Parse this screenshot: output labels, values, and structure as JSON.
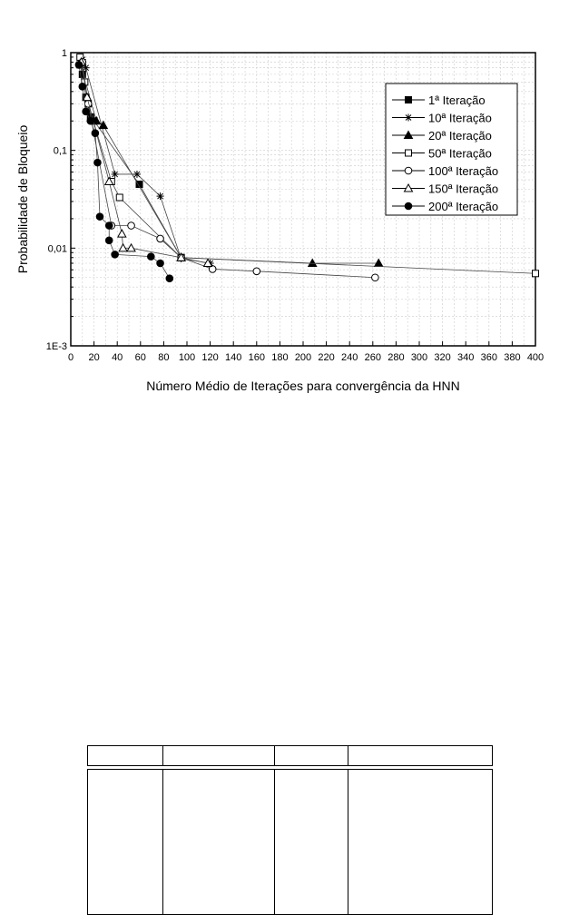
{
  "chart_data": {
    "type": "line",
    "title": "",
    "xlabel": "Número Médio de Iterações para convergência da HNN",
    "ylabel": "Probabilidade de Bloqueio",
    "xlim": [
      0,
      400
    ],
    "ylim": [
      0.001,
      1
    ],
    "yscale": "log",
    "grid": true,
    "legend_position": "top-right",
    "x_ticks": [
      0,
      20,
      40,
      60,
      80,
      100,
      120,
      140,
      160,
      180,
      200,
      220,
      240,
      260,
      280,
      300,
      320,
      340,
      360,
      380,
      400
    ],
    "y_ticks": [
      {
        "value": 1,
        "label": "1"
      },
      {
        "value": 0.1,
        "label": "0,1"
      },
      {
        "value": 0.01,
        "label": "0,01"
      },
      {
        "value": 0.001,
        "label": "1E-3"
      }
    ],
    "series": [
      {
        "name": "1ª Iteração",
        "marker": "square-filled",
        "points": [
          [
            8,
            0.75
          ],
          [
            10,
            0.6
          ],
          [
            13,
            0.35
          ],
          [
            17,
            0.22
          ],
          [
            20,
            0.2
          ],
          [
            59,
            0.045
          ],
          [
            95,
            0.008
          ]
        ]
      },
      {
        "name": "10ª Iteração",
        "marker": "star",
        "points": [
          [
            10,
            0.85
          ],
          [
            13,
            0.7
          ],
          [
            38,
            0.057
          ],
          [
            57,
            0.057
          ],
          [
            77,
            0.034
          ],
          [
            95,
            0.0078
          ],
          [
            120,
            0.007
          ]
        ]
      },
      {
        "name": "20ª Iteração",
        "marker": "triangle-filled",
        "points": [
          [
            8,
            0.8
          ],
          [
            22,
            0.2
          ],
          [
            28,
            0.18
          ],
          [
            95,
            0.008
          ],
          [
            208,
            0.007
          ],
          [
            265,
            0.007
          ]
        ]
      },
      {
        "name": "50ª Iteração",
        "marker": "square-open",
        "points": [
          [
            8,
            0.9
          ],
          [
            12,
            0.5
          ],
          [
            15,
            0.3
          ],
          [
            35,
            0.048
          ],
          [
            42,
            0.033
          ],
          [
            95,
            0.008
          ],
          [
            400,
            0.0055
          ]
        ]
      },
      {
        "name": "100ª Iteração",
        "marker": "circle-open",
        "points": [
          [
            10,
            0.8
          ],
          [
            15,
            0.3
          ],
          [
            35,
            0.017
          ],
          [
            52,
            0.017
          ],
          [
            77,
            0.0125
          ],
          [
            95,
            0.008
          ],
          [
            122,
            0.0061
          ],
          [
            160,
            0.0058
          ],
          [
            262,
            0.005
          ]
        ]
      },
      {
        "name": "150ª Iteração",
        "marker": "triangle-open",
        "points": [
          [
            9,
            0.8
          ],
          [
            14,
            0.35
          ],
          [
            33,
            0.048
          ],
          [
            44,
            0.014
          ],
          [
            45,
            0.01
          ],
          [
            52,
            0.01
          ],
          [
            95,
            0.008
          ],
          [
            118,
            0.007
          ]
        ]
      },
      {
        "name": "200ª Iteração",
        "marker": "circle-filled",
        "points": [
          [
            7,
            0.75
          ],
          [
            10,
            0.45
          ],
          [
            13,
            0.25
          ],
          [
            17,
            0.2
          ],
          [
            21,
            0.15
          ],
          [
            23,
            0.075
          ],
          [
            25,
            0.021
          ],
          [
            33,
            0.017
          ],
          [
            33,
            0.012
          ],
          [
            38,
            0.0086
          ],
          [
            69,
            0.0082
          ],
          [
            77,
            0.007
          ],
          [
            85,
            0.0049
          ]
        ]
      }
    ]
  }
}
